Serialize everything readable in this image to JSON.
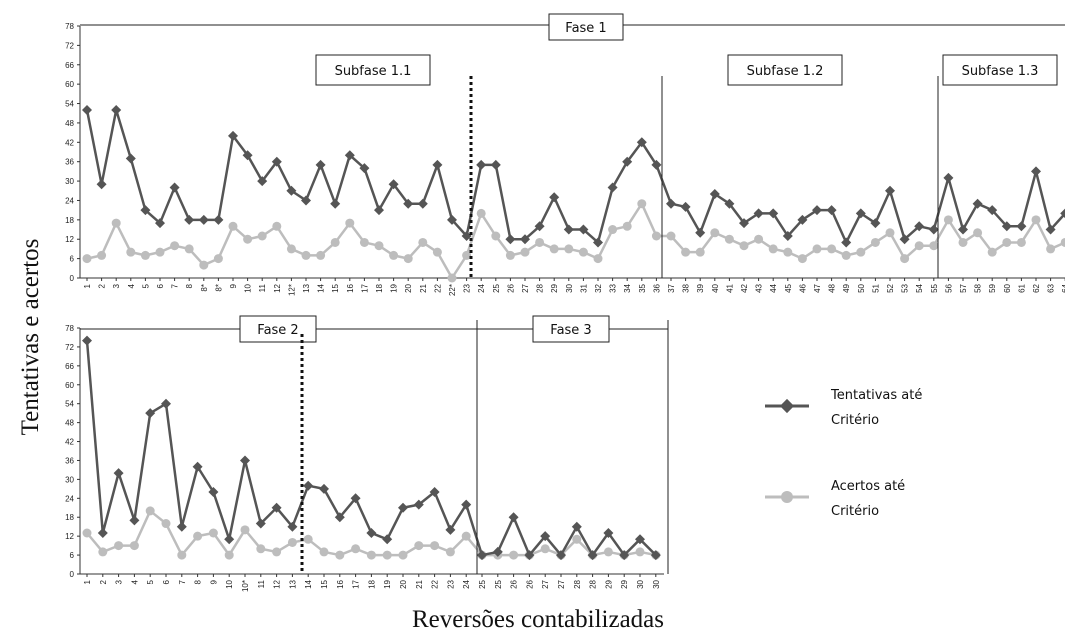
{
  "figure": {
    "y_axis_label": "Tentativas e acertos",
    "x_axis_label": "Reversões contabilizadas"
  },
  "legend": {
    "tentativas_line1": "Tentativas até",
    "tentativas_line2": "Critério",
    "acertos_line1": "Acertos até",
    "acertos_line2": "Critério"
  },
  "colors": {
    "tentativas": "#555555",
    "acertos": "#bdbdbd"
  },
  "chart_data": [
    {
      "type": "line",
      "panel": "top",
      "title": "Fase 1",
      "subphases": [
        "Subfase 1.1",
        "Subfase 1.2",
        "Subfase 1.3"
      ],
      "ylim": [
        0,
        78
      ],
      "yticks": [
        0,
        6,
        12,
        18,
        24,
        30,
        36,
        42,
        48,
        54,
        60,
        66,
        72,
        78
      ],
      "categories": [
        "1",
        "2",
        "3",
        "4",
        "5",
        "6",
        "7",
        "8",
        "8*",
        "8*",
        "9",
        "10",
        "11",
        "12",
        "12*",
        "13",
        "14",
        "15",
        "16",
        "17",
        "18",
        "19",
        "20",
        "21",
        "22",
        "22*",
        "23",
        "24",
        "25",
        "26",
        "27",
        "28",
        "29",
        "30",
        "31",
        "32",
        "33",
        "34",
        "35",
        "36",
        "37",
        "38",
        "39",
        "40",
        "41",
        "42",
        "43",
        "44",
        "45",
        "46",
        "47",
        "48",
        "49",
        "50",
        "51",
        "52",
        "53",
        "54",
        "55",
        "56",
        "57",
        "58",
        "59",
        "60",
        "61",
        "62",
        "63",
        "64"
      ],
      "series": [
        {
          "name": "Tentativas até Critério",
          "values": [
            52,
            29,
            52,
            37,
            21,
            17,
            28,
            18,
            18,
            18,
            44,
            38,
            30,
            36,
            27,
            24,
            35,
            23,
            38,
            34,
            21,
            29,
            23,
            23,
            35,
            18,
            13,
            35,
            35,
            12,
            12,
            16,
            25,
            15,
            15,
            11,
            28,
            36,
            42,
            35,
            23,
            22,
            14,
            26,
            23,
            17,
            20,
            20,
            13,
            18,
            21,
            21,
            11,
            20,
            17,
            27,
            12,
            16,
            15,
            31,
            15,
            23,
            21,
            16,
            16,
            33,
            15,
            20
          ]
        },
        {
          "name": "Acertos até Critério",
          "values": [
            6,
            7,
            17,
            8,
            7,
            8,
            10,
            9,
            4,
            6,
            16,
            12,
            13,
            16,
            9,
            7,
            7,
            11,
            17,
            11,
            10,
            7,
            6,
            11,
            8,
            0,
            7,
            20,
            13,
            7,
            8,
            11,
            9,
            9,
            8,
            6,
            15,
            16,
            23,
            13,
            13,
            8,
            8,
            14,
            12,
            10,
            12,
            9,
            8,
            6,
            9,
            9,
            7,
            8,
            11,
            14,
            6,
            10,
            10,
            18,
            11,
            14,
            8,
            11,
            11,
            18,
            9,
            11
          ]
        }
      ]
    },
    {
      "type": "line",
      "panel": "bottom",
      "title": "Fase 2 / Fase 3",
      "phases": [
        "Fase 2",
        "Fase 3"
      ],
      "ylim": [
        0,
        78
      ],
      "yticks": [
        0,
        6,
        12,
        18,
        24,
        30,
        36,
        42,
        48,
        54,
        60,
        66,
        72,
        78
      ],
      "categories": [
        "1",
        "2",
        "3",
        "4",
        "5",
        "6",
        "7",
        "8",
        "9",
        "10",
        "10*",
        "11",
        "12",
        "13",
        "14",
        "15",
        "16",
        "17",
        "18",
        "19",
        "20",
        "21",
        "22",
        "23",
        "24",
        "25",
        "25",
        "26",
        "26",
        "27",
        "27",
        "28",
        "28",
        "29",
        "29",
        "30",
        "30"
      ],
      "series": [
        {
          "name": "Tentativas até Critério",
          "values": [
            74,
            13,
            32,
            17,
            51,
            54,
            15,
            34,
            26,
            11,
            36,
            16,
            21,
            15,
            28,
            27,
            18,
            24,
            13,
            11,
            21,
            22,
            26,
            14,
            22,
            6,
            7,
            18,
            6,
            12,
            6,
            15,
            6,
            13,
            6,
            11,
            6
          ]
        },
        {
          "name": "Acertos até Critério",
          "values": [
            13,
            7,
            9,
            9,
            20,
            16,
            6,
            12,
            13,
            6,
            14,
            8,
            7,
            10,
            11,
            7,
            6,
            8,
            6,
            6,
            6,
            9,
            9,
            7,
            12,
            6,
            6,
            6,
            6,
            8,
            6,
            11,
            6,
            7,
            6,
            7,
            6
          ]
        }
      ]
    }
  ]
}
